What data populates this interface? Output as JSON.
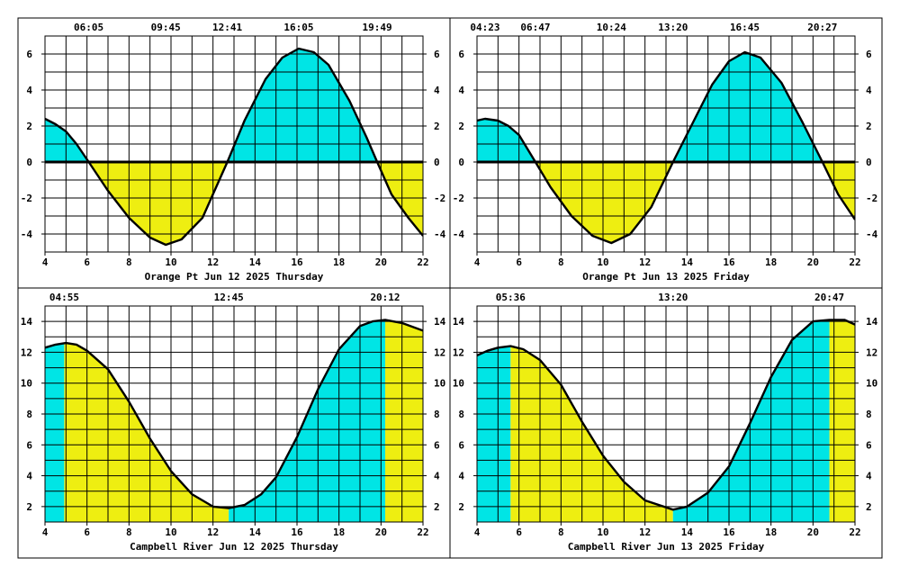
{
  "colors": {
    "flood": "#00e5e5",
    "ebb": "#eeee11",
    "grid": "#000000",
    "curve": "#000000"
  },
  "chart_data": [
    {
      "type": "area",
      "title": "Orange Pt Jun 12 2025 Thursday",
      "xlim": [
        4,
        22
      ],
      "ylim": [
        -5,
        7
      ],
      "xticks": [
        4,
        6,
        8,
        10,
        12,
        14,
        16,
        18,
        20,
        22
      ],
      "yticks": [
        -4,
        -2,
        0,
        2,
        4,
        6
      ],
      "event_labels": [
        "06:05",
        "09:45",
        "12:41",
        "16:05",
        "19:49"
      ],
      "event_hours": [
        6.083,
        9.75,
        12.683,
        16.083,
        19.817
      ],
      "fill_mode": "sign",
      "x": [
        4,
        4.5,
        5,
        5.5,
        6.083,
        7,
        8,
        9,
        9.75,
        10.5,
        11.5,
        12.683,
        13.5,
        14.5,
        15.3,
        16.083,
        16.8,
        17.5,
        18.5,
        19.3,
        19.817,
        20.5,
        21.3,
        22
      ],
      "y": [
        2.4,
        2.1,
        1.7,
        1.0,
        0.0,
        -1.6,
        -3.1,
        -4.2,
        -4.6,
        -4.3,
        -3.1,
        0.0,
        2.3,
        4.6,
        5.8,
        6.3,
        6.1,
        5.4,
        3.4,
        1.4,
        0.0,
        -1.8,
        -3.1,
        -4.1
      ],
      "line_y": 0
    },
    {
      "type": "area",
      "title": "Orange Pt Jun 13 2025 Friday",
      "xlim": [
        4,
        22
      ],
      "ylim": [
        -5,
        7
      ],
      "xticks": [
        4,
        6,
        8,
        10,
        12,
        14,
        16,
        18,
        20,
        22
      ],
      "yticks": [
        -4,
        -2,
        0,
        2,
        4,
        6
      ],
      "event_labels": [
        "04:23",
        "06:47",
        "10:24",
        "13:20",
        "16:45",
        "20:27"
      ],
      "event_hours": [
        4.383,
        6.783,
        10.4,
        13.333,
        16.75,
        20.45
      ],
      "fill_mode": "sign",
      "x": [
        4,
        4.383,
        5,
        5.5,
        6,
        6.783,
        7.5,
        8.5,
        9.5,
        10.4,
        11.3,
        12.3,
        13.333,
        14.2,
        15.2,
        16.0,
        16.75,
        17.5,
        18.5,
        19.5,
        20.45,
        21.2,
        22
      ],
      "y": [
        2.3,
        2.4,
        2.3,
        2.0,
        1.5,
        0.0,
        -1.4,
        -3.0,
        -4.1,
        -4.5,
        -4.0,
        -2.5,
        0.0,
        2.0,
        4.3,
        5.6,
        6.1,
        5.8,
        4.4,
        2.2,
        0.0,
        -1.8,
        -3.2
      ],
      "line_y": 0
    },
    {
      "type": "area",
      "title": "Campbell River Jun 12 2025 Thursday",
      "xlim": [
        4,
        22
      ],
      "ylim": [
        1,
        15
      ],
      "xticks": [
        4,
        6,
        8,
        10,
        12,
        14,
        16,
        18,
        20,
        22
      ],
      "yticks": [
        2,
        4,
        6,
        8,
        10,
        12,
        14
      ],
      "event_labels": [
        "04:55",
        "12:45",
        "20:12"
      ],
      "event_hours": [
        4.917,
        12.75,
        20.2
      ],
      "fill_mode": "segments",
      "segment_colors": [
        "flood",
        "ebb",
        "flood",
        "ebb"
      ],
      "x": [
        4,
        4.5,
        5,
        5.5,
        6,
        7,
        8,
        9,
        10,
        11,
        12,
        12.75,
        13.5,
        14.3,
        15,
        16,
        17,
        18,
        19,
        19.6,
        20.2,
        21,
        22
      ],
      "y": [
        12.3,
        12.5,
        12.6,
        12.5,
        12.1,
        10.9,
        8.8,
        6.4,
        4.3,
        2.8,
        2.0,
        1.9,
        2.1,
        2.8,
        3.9,
        6.5,
        9.6,
        12.2,
        13.7,
        14.0,
        14.1,
        13.9,
        13.4
      ]
    },
    {
      "type": "area",
      "title": "Campbell River Jun 13 2025 Friday",
      "xlim": [
        4,
        22
      ],
      "ylim": [
        1,
        15
      ],
      "xticks": [
        4,
        6,
        8,
        10,
        12,
        14,
        16,
        18,
        20,
        22
      ],
      "yticks": [
        2,
        4,
        6,
        8,
        10,
        12,
        14
      ],
      "event_labels": [
        "05:36",
        "13:20",
        "20:47"
      ],
      "event_hours": [
        5.6,
        13.333,
        20.783
      ],
      "fill_mode": "segments",
      "segment_colors": [
        "flood",
        "ebb",
        "flood",
        "ebb"
      ],
      "x": [
        4,
        4.5,
        5,
        5.6,
        6.2,
        7,
        8,
        9,
        10,
        11,
        12,
        13.333,
        14,
        15,
        16,
        17,
        18,
        19,
        20,
        20.783,
        21.5,
        22
      ],
      "y": [
        11.8,
        12.1,
        12.3,
        12.4,
        12.2,
        11.5,
        9.9,
        7.5,
        5.3,
        3.6,
        2.4,
        1.8,
        2.0,
        2.9,
        4.6,
        7.4,
        10.4,
        12.8,
        14.0,
        14.1,
        14.1,
        13.8
      ]
    }
  ]
}
